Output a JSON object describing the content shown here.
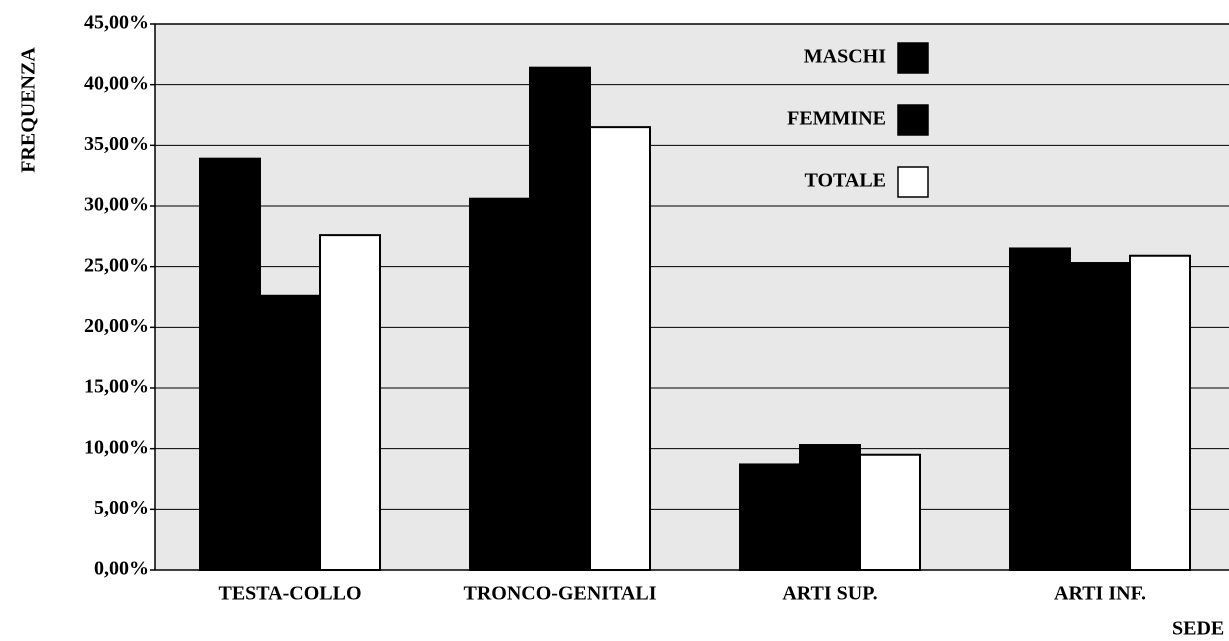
{
  "chart_data": {
    "type": "bar",
    "categories": [
      "TESTA-COLLO",
      "TRONCO-GENITALI",
      "ARTI SUP.",
      "ARTI INF."
    ],
    "series": [
      {
        "name": "MASCHI",
        "color": "#000000",
        "values": [
          33.9,
          30.6,
          8.7,
          26.5
        ]
      },
      {
        "name": "FEMMINE",
        "color": "#000000",
        "values": [
          22.6,
          41.4,
          10.3,
          25.3
        ]
      },
      {
        "name": "TOTALE",
        "color": "#ffffff",
        "values": [
          27.6,
          36.5,
          9.5,
          25.9
        ]
      }
    ],
    "y_label": "FREQUENZA",
    "x_label": "SEDE",
    "ylim": [
      0,
      45
    ],
    "yticks": [
      {
        "value": 0,
        "label": "0,00%"
      },
      {
        "value": 5,
        "label": "5,00%"
      },
      {
        "value": 10,
        "label": "10,00%"
      },
      {
        "value": 15,
        "label": "15,00%"
      },
      {
        "value": 20,
        "label": "20,00%"
      },
      {
        "value": 25,
        "label": "25,00%"
      },
      {
        "value": 30,
        "label": "30,00%"
      },
      {
        "value": 35,
        "label": "35,00%"
      },
      {
        "value": 40,
        "label": "40,00%"
      },
      {
        "value": 45,
        "label": "45,00%"
      }
    ],
    "grid": true
  }
}
